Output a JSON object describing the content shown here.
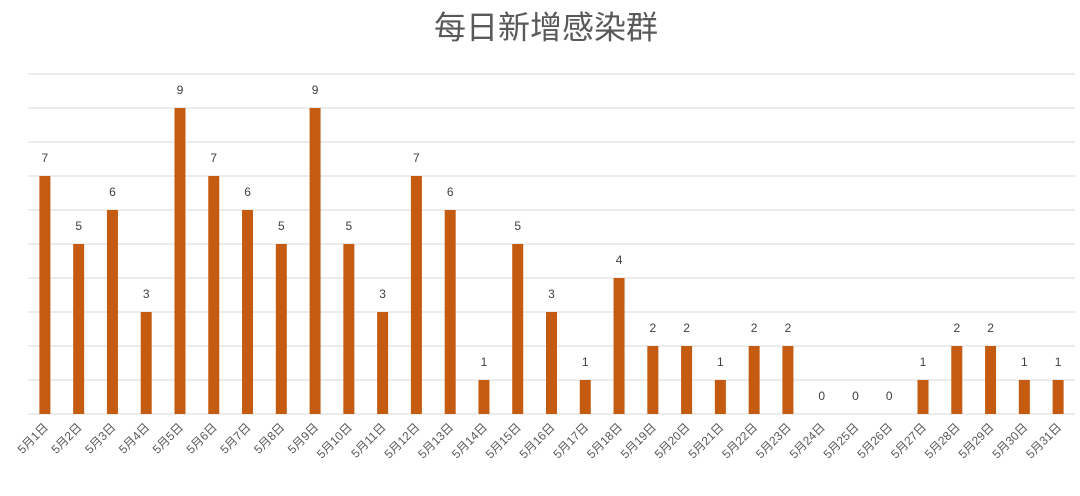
{
  "chart_data": {
    "type": "bar",
    "title": "每日新增感染群",
    "categories": [
      "5月1日",
      "5月2日",
      "5月3日",
      "5月4日",
      "5月5日",
      "5月6日",
      "5月7日",
      "5月8日",
      "5月9日",
      "5月10日",
      "5月11日",
      "5月12日",
      "5月13日",
      "5月14日",
      "5月15日",
      "5月16日",
      "5月17日",
      "5月18日",
      "5月19日",
      "5月20日",
      "5月21日",
      "5月22日",
      "5月23日",
      "5月24日",
      "5月25日",
      "5月26日",
      "5月27日",
      "5月28日",
      "5月29日",
      "5月30日",
      "5月31日"
    ],
    "values": [
      7,
      5,
      6,
      3,
      9,
      7,
      6,
      5,
      9,
      5,
      3,
      7,
      6,
      1,
      5,
      3,
      1,
      4,
      2,
      2,
      1,
      2,
      2,
      0,
      0,
      0,
      1,
      2,
      2,
      1,
      1
    ],
    "color": "#c55a11",
    "ylim": [
      0,
      10
    ],
    "yticks": [
      0,
      1,
      2,
      3,
      4,
      5,
      6,
      7,
      8,
      9,
      10
    ],
    "grid": true
  }
}
